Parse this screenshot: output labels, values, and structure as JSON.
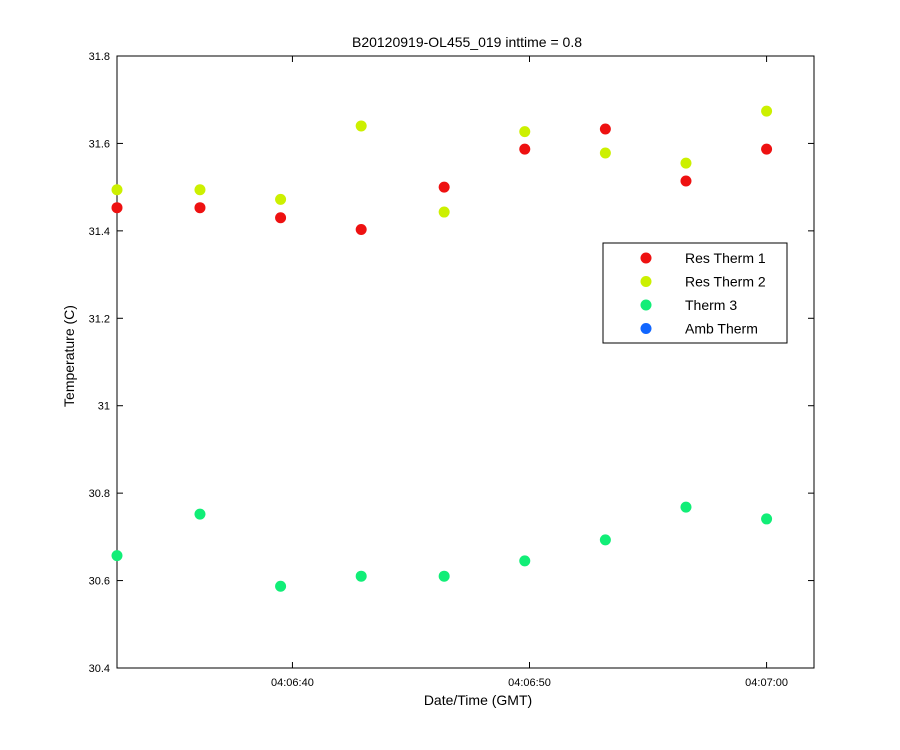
{
  "chart_data": {
    "type": "scatter",
    "title": "B20120919-OL455_019 inttime = 0.8",
    "xlabel": "Date/Time (GMT)",
    "ylabel": "Temperature (C)",
    "xlim": [
      "04:06:32.6",
      "04:07:02.0"
    ],
    "ylim": [
      30.4,
      31.8
    ],
    "x_ticks": [
      "04:06:40",
      "04:06:50",
      "04:07:00"
    ],
    "y_ticks": [
      "30.4",
      "30.6",
      "30.8",
      "31",
      "31.2",
      "31.4",
      "31.6",
      "31.8"
    ],
    "grid": false,
    "legend_position": "right",
    "x": [
      "04:06:32.6",
      "04:06:36.1",
      "04:06:39.5",
      "04:06:42.9",
      "04:06:46.4",
      "04:06:49.8",
      "04:06:53.2",
      "04:06:56.6",
      "04:07:00.0"
    ],
    "series": [
      {
        "name": "Res Therm 1",
        "color": "#ee1111",
        "values": [
          31.453,
          31.453,
          31.43,
          31.403,
          31.5,
          31.587,
          31.633,
          31.514,
          31.587
        ]
      },
      {
        "name": "Res Therm 2",
        "color": "#ccf000",
        "values": [
          31.494,
          31.494,
          31.472,
          31.64,
          31.443,
          31.627,
          31.578,
          31.555,
          31.674
        ]
      },
      {
        "name": "Therm 3",
        "color": "#11ee77",
        "values": [
          30.657,
          30.752,
          30.587,
          30.61,
          30.61,
          30.645,
          30.693,
          30.768,
          30.741
        ]
      },
      {
        "name": "Amb Therm",
        "color": "#1166ff",
        "values": []
      }
    ]
  }
}
